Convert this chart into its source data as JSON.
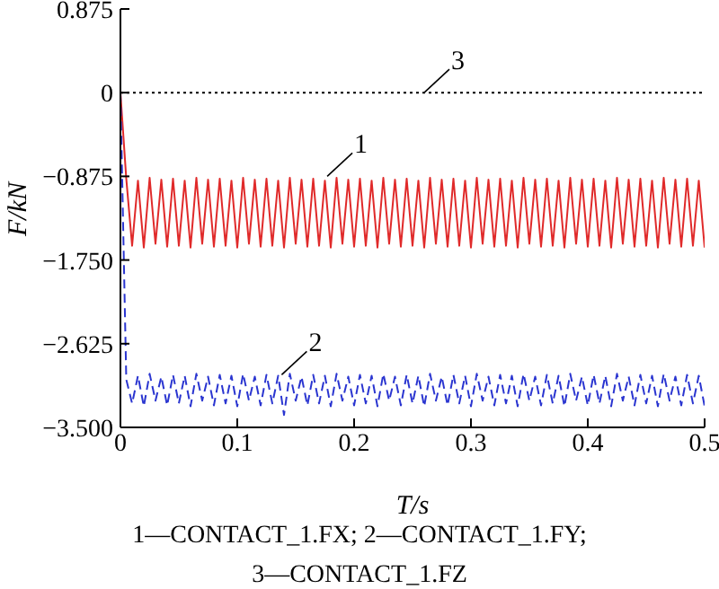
{
  "chart_data": {
    "type": "line",
    "xlabel": "T/s",
    "ylabel": "F/kN",
    "x": [
      0,
      0.005,
      0.01,
      0.015,
      0.02,
      0.025,
      0.03,
      0.035,
      0.04,
      0.045,
      0.05,
      0.055,
      0.06,
      0.065,
      0.07,
      0.075,
      0.08,
      0.085,
      0.09,
      0.095,
      0.1,
      0.105,
      0.11,
      0.115,
      0.12,
      0.125,
      0.13,
      0.135,
      0.14,
      0.145,
      0.15,
      0.155,
      0.16,
      0.165,
      0.17,
      0.175,
      0.18,
      0.185,
      0.19,
      0.195,
      0.2,
      0.205,
      0.21,
      0.215,
      0.22,
      0.225,
      0.23,
      0.235,
      0.24,
      0.245,
      0.25,
      0.255,
      0.26,
      0.265,
      0.27,
      0.275,
      0.28,
      0.285,
      0.29,
      0.295,
      0.3,
      0.305,
      0.31,
      0.315,
      0.32,
      0.325,
      0.33,
      0.335,
      0.34,
      0.345,
      0.35,
      0.355,
      0.36,
      0.365,
      0.37,
      0.375,
      0.38,
      0.385,
      0.39,
      0.395,
      0.4,
      0.405,
      0.41,
      0.415,
      0.42,
      0.425,
      0.43,
      0.435,
      0.44,
      0.445,
      0.45,
      0.455,
      0.46,
      0.465,
      0.47,
      0.475,
      0.48,
      0.485,
      0.49,
      0.495,
      0.5
    ],
    "series": [
      {
        "color": "#e02a2a",
        "line_style": "solid",
        "values": [
          0,
          -0.9,
          -1.6,
          -0.92,
          -1.62,
          -0.89,
          -1.58,
          -0.91,
          -1.61,
          -0.9,
          -1.6,
          -0.92,
          -1.62,
          -0.89,
          -1.58,
          -0.91,
          -1.61,
          -0.9,
          -1.6,
          -0.92,
          -1.62,
          -0.89,
          -1.58,
          -0.91,
          -1.61,
          -0.9,
          -1.6,
          -0.92,
          -1.62,
          -0.89,
          -1.58,
          -0.91,
          -1.61,
          -0.9,
          -1.6,
          -0.92,
          -1.62,
          -0.89,
          -1.58,
          -0.91,
          -1.61,
          -0.9,
          -1.6,
          -0.92,
          -1.62,
          -0.89,
          -1.58,
          -0.91,
          -1.61,
          -0.9,
          -1.6,
          -0.92,
          -1.62,
          -0.89,
          -1.58,
          -0.91,
          -1.61,
          -0.9,
          -1.6,
          -0.92,
          -1.62,
          -0.89,
          -1.58,
          -0.91,
          -1.61,
          -0.9,
          -1.6,
          -0.92,
          -1.62,
          -0.89,
          -1.58,
          -0.91,
          -1.61,
          -0.9,
          -1.6,
          -0.92,
          -1.62,
          -0.89,
          -1.58,
          -0.91,
          -1.61,
          -0.9,
          -1.6,
          -0.92,
          -1.62,
          -0.89,
          -1.58,
          -0.91,
          -1.61,
          -0.9,
          -1.6,
          -0.92,
          -1.62,
          -0.89,
          -1.58,
          -0.91,
          -1.61,
          -0.9,
          -1.6,
          -0.92,
          -1.62
        ]
      },
      {
        "color": "#2a35d0",
        "line_style": "dashed",
        "values": [
          0,
          -3.0,
          -3.25,
          -2.96,
          -3.28,
          -2.94,
          -3.22,
          -2.97,
          -3.27,
          -2.95,
          -3.25,
          -2.96,
          -3.28,
          -2.94,
          -3.22,
          -2.97,
          -3.27,
          -2.95,
          -3.25,
          -2.96,
          -3.28,
          -2.94,
          -3.22,
          -2.97,
          -3.27,
          -2.95,
          -3.25,
          -2.96,
          -3.37,
          -2.94,
          -3.22,
          -2.97,
          -3.27,
          -2.95,
          -3.25,
          -2.96,
          -3.28,
          -2.94,
          -3.22,
          -2.97,
          -3.27,
          -2.95,
          -3.25,
          -2.96,
          -3.28,
          -2.94,
          -3.22,
          -2.97,
          -3.27,
          -2.95,
          -3.25,
          -2.96,
          -3.28,
          -2.94,
          -3.22,
          -2.97,
          -3.27,
          -2.95,
          -3.25,
          -2.96,
          -3.28,
          -2.94,
          -3.22,
          -2.97,
          -3.27,
          -2.95,
          -3.25,
          -2.96,
          -3.28,
          -2.94,
          -3.22,
          -2.97,
          -3.27,
          -2.95,
          -3.25,
          -2.96,
          -3.28,
          -2.94,
          -3.22,
          -2.97,
          -3.27,
          -2.95,
          -3.25,
          -2.96,
          -3.28,
          -2.94,
          -3.22,
          -2.97,
          -3.27,
          -2.95,
          -3.25,
          -2.96,
          -3.28,
          -2.94,
          -3.22,
          -2.97,
          -3.27,
          -2.95,
          -3.25,
          -2.96,
          -3.28
        ]
      },
      {
        "color": "#000000",
        "line_style": "dotted",
        "x": [
          0,
          0.5
        ],
        "values": [
          0,
          0
        ]
      }
    ],
    "annotations": [
      {
        "text": "1",
        "x": 0.177,
        "y": -0.875
      },
      {
        "text": "2",
        "x": 0.138,
        "y": -2.95
      },
      {
        "text": "3",
        "x": 0.26,
        "y": 0
      },
      "1—CONTACT_1.FX; 2—CONTACT_1.FY;",
      "3—CONTACT_1.FZ"
    ],
    "xlim": [
      0,
      0.5
    ],
    "xticks": [
      0,
      0.1,
      0.2,
      0.3,
      0.4,
      0.5
    ],
    "ylim": [
      -3.5,
      0.875
    ],
    "yticks": [
      {
        "value": -3.5,
        "label": "−3.500"
      },
      {
        "value": -2.625,
        "label": "−2.625"
      },
      {
        "value": -1.75,
        "label": "−1.750"
      },
      {
        "value": -0.875,
        "label": "−0.875"
      },
      0,
      0.875
    ],
    "grid": false,
    "marker": "none"
  }
}
